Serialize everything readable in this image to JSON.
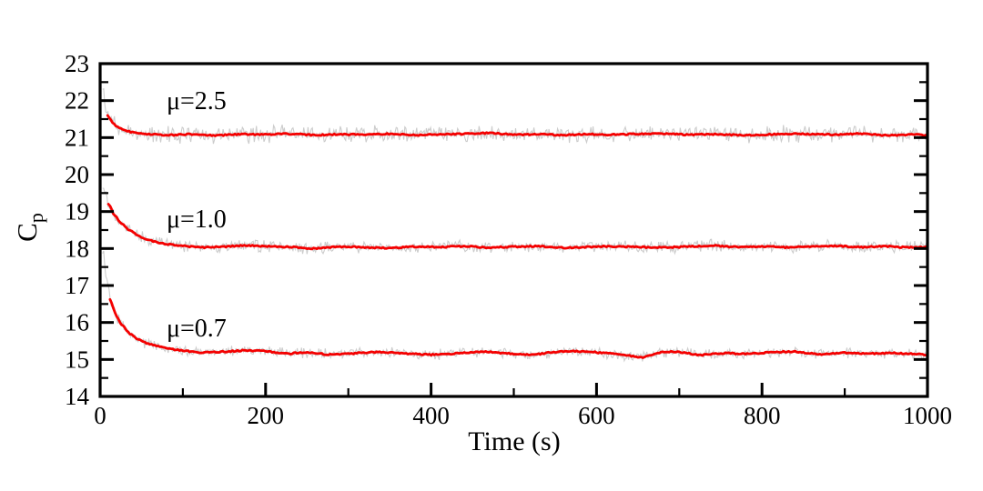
{
  "chart_data": {
    "type": "line",
    "title": "",
    "xlabel": "Time (s)",
    "ylabel": "C_p",
    "ylabel_main": "C",
    "ylabel_sub": "p",
    "xlim": [
      0,
      1000
    ],
    "ylim": [
      14,
      23
    ],
    "x_major_ticks": [
      0,
      200,
      400,
      600,
      800,
      1000
    ],
    "x_minor_ticks": [
      100,
      300,
      500,
      700,
      900
    ],
    "y_major_ticks": [
      14,
      15,
      16,
      17,
      18,
      19,
      20,
      21,
      22,
      23
    ],
    "y_minor_ticks": [
      14.5,
      15.5,
      16.5,
      17.5,
      18.5,
      19.5,
      20.5,
      21.5,
      22.5
    ],
    "grid": false,
    "legend": "none",
    "colors": {
      "smooth_line": "#f40000",
      "raw_line": "#cccccc",
      "axis": "#000000",
      "background": "#ffffff"
    },
    "series": [
      {
        "label": "μ=2.5",
        "mu": 2.5,
        "initial_value": 21.6,
        "steady_state": 21.09,
        "noise_amp": 0.2,
        "gray_lead": [
          [
            3,
            22.3
          ],
          [
            6,
            21.92
          ]
        ],
        "points": [
          [
            9,
            21.6
          ],
          [
            14,
            21.44
          ],
          [
            20,
            21.3
          ],
          [
            28,
            21.21
          ],
          [
            38,
            21.15
          ],
          [
            50,
            21.11
          ],
          [
            65,
            21.09
          ],
          [
            85,
            21.07
          ],
          [
            110,
            21.09
          ],
          [
            140,
            21.06
          ],
          [
            170,
            21.09
          ],
          [
            200,
            21.08
          ],
          [
            230,
            21.1
          ],
          [
            260,
            21.07
          ],
          [
            290,
            21.09
          ],
          [
            320,
            21.08
          ],
          [
            350,
            21.1
          ],
          [
            380,
            21.07
          ],
          [
            410,
            21.09
          ],
          [
            440,
            21.1
          ],
          [
            470,
            21.12
          ],
          [
            500,
            21.08
          ],
          [
            530,
            21.09
          ],
          [
            560,
            21.07
          ],
          [
            590,
            21.09
          ],
          [
            620,
            21.08
          ],
          [
            650,
            21.1
          ],
          [
            680,
            21.11
          ],
          [
            710,
            21.08
          ],
          [
            740,
            21.09
          ],
          [
            770,
            21.07
          ],
          [
            800,
            21.08
          ],
          [
            830,
            21.1
          ],
          [
            860,
            21.09
          ],
          [
            890,
            21.08
          ],
          [
            920,
            21.1
          ],
          [
            950,
            21.06
          ],
          [
            975,
            21.08
          ],
          [
            1000,
            21.07
          ]
        ]
      },
      {
        "label": "μ=1.0",
        "mu": 1.0,
        "initial_value": 19.2,
        "steady_state": 18.05,
        "noise_amp": 0.14,
        "gray_lead": [
          [
            3,
            19.75
          ],
          [
            6,
            19.45
          ]
        ],
        "points": [
          [
            10,
            19.2
          ],
          [
            16,
            18.95
          ],
          [
            24,
            18.72
          ],
          [
            34,
            18.52
          ],
          [
            46,
            18.35
          ],
          [
            60,
            18.22
          ],
          [
            78,
            18.13
          ],
          [
            100,
            18.07
          ],
          [
            125,
            18.03
          ],
          [
            150,
            18.05
          ],
          [
            175,
            18.08
          ],
          [
            200,
            18.06
          ],
          [
            230,
            18.04
          ],
          [
            260,
            18.0
          ],
          [
            290,
            18.05
          ],
          [
            320,
            18.03
          ],
          [
            350,
            18.02
          ],
          [
            380,
            18.05
          ],
          [
            410,
            18.04
          ],
          [
            440,
            18.06
          ],
          [
            470,
            18.03
          ],
          [
            500,
            18.05
          ],
          [
            530,
            18.06
          ],
          [
            560,
            18.02
          ],
          [
            590,
            18.04
          ],
          [
            620,
            18.06
          ],
          [
            650,
            18.04
          ],
          [
            680,
            18.03
          ],
          [
            710,
            18.05
          ],
          [
            740,
            18.08
          ],
          [
            770,
            18.04
          ],
          [
            800,
            18.06
          ],
          [
            830,
            18.03
          ],
          [
            860,
            18.05
          ],
          [
            890,
            18.07
          ],
          [
            920,
            18.04
          ],
          [
            950,
            18.06
          ],
          [
            975,
            18.03
          ],
          [
            1000,
            18.04
          ]
        ]
      },
      {
        "label": "μ=0.7",
        "mu": 0.7,
        "initial_value": 16.6,
        "steady_state": 15.17,
        "noise_amp": 0.13,
        "gray_lead": [
          [
            3,
            17.95
          ],
          [
            7,
            17.3
          ]
        ],
        "points": [
          [
            12,
            16.62
          ],
          [
            18,
            16.25
          ],
          [
            26,
            15.95
          ],
          [
            36,
            15.7
          ],
          [
            48,
            15.52
          ],
          [
            62,
            15.4
          ],
          [
            80,
            15.3
          ],
          [
            100,
            15.24
          ],
          [
            125,
            15.19
          ],
          [
            150,
            15.21
          ],
          [
            175,
            15.24
          ],
          [
            200,
            15.22
          ],
          [
            225,
            15.16
          ],
          [
            250,
            15.19
          ],
          [
            280,
            15.13
          ],
          [
            310,
            15.17
          ],
          [
            340,
            15.2
          ],
          [
            370,
            15.16
          ],
          [
            400,
            15.13
          ],
          [
            430,
            15.16
          ],
          [
            460,
            15.21
          ],
          [
            490,
            15.17
          ],
          [
            520,
            15.13
          ],
          [
            550,
            15.2
          ],
          [
            580,
            15.22
          ],
          [
            610,
            15.17
          ],
          [
            640,
            15.1
          ],
          [
            655,
            15.06
          ],
          [
            675,
            15.18
          ],
          [
            700,
            15.2
          ],
          [
            725,
            15.12
          ],
          [
            750,
            15.17
          ],
          [
            780,
            15.15
          ],
          [
            810,
            15.19
          ],
          [
            840,
            15.21
          ],
          [
            870,
            15.14
          ],
          [
            900,
            15.18
          ],
          [
            930,
            15.16
          ],
          [
            960,
            15.17
          ],
          [
            1000,
            15.13
          ]
        ]
      }
    ]
  }
}
